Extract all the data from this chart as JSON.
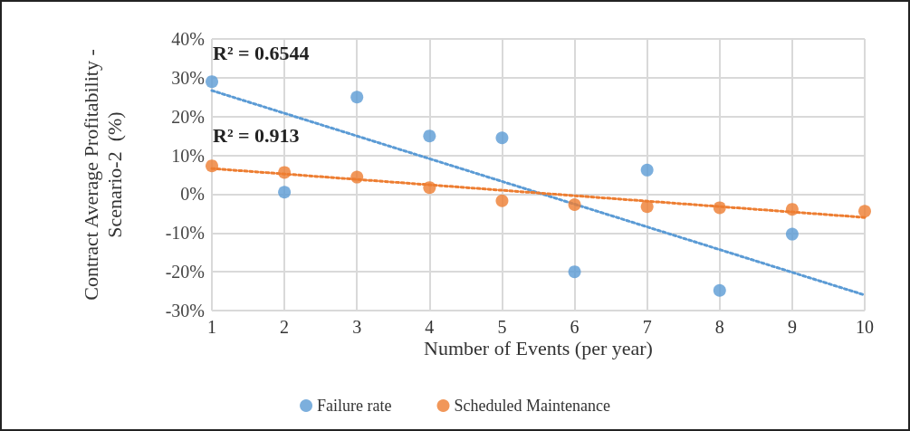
{
  "chart_data": {
    "type": "scatter",
    "xlabel": "Number of Events (per year)",
    "ylabel": "Contract Average Profitability - Scenario-2  (%)",
    "x": [
      1,
      2,
      3,
      4,
      5,
      6,
      7,
      8,
      9,
      10
    ],
    "series": [
      {
        "name": "Failure rate",
        "color": "#5b9bd5",
        "x": [
          1,
          2,
          3,
          4,
          5,
          6,
          7,
          8,
          9
        ],
        "values": [
          29,
          0.5,
          25,
          15,
          14.5,
          -20,
          6.2,
          -24.8,
          -10.3
        ]
      },
      {
        "name": "Scheduled Maintenance",
        "color": "#ed7d31",
        "values": [
          7.3,
          5.6,
          4.4,
          1.7,
          -1.7,
          -2.7,
          -3.2,
          -3.5,
          -3.9,
          -4.4
        ]
      },
      {
        "type": "line",
        "color": "#5b9bd5",
        "x": [
          1,
          10
        ],
        "values": [
          26.7,
          -26
        ],
        "line_style": "dotted",
        "marker": "none"
      },
      {
        "type": "line",
        "color": "#ed7d31",
        "x": [
          1,
          10
        ],
        "values": [
          6.6,
          -6
        ],
        "line_style": "dotted",
        "marker": "none"
      }
    ],
    "annotations": [
      "R² = 0.6544",
      "R² = 0.913"
    ],
    "xlim": [
      1,
      10
    ],
    "xticks": [
      1,
      2,
      3,
      4,
      5,
      6,
      7,
      8,
      9,
      10
    ],
    "ylim": [
      -30,
      40
    ],
    "yticks": [
      {
        "value": -30,
        "label": "-30%"
      },
      {
        "value": -20,
        "label": "-20%"
      },
      {
        "value": -10,
        "label": "-10%"
      },
      {
        "value": 0,
        "label": "0%"
      },
      {
        "value": 10,
        "label": "10%"
      },
      {
        "value": 20,
        "label": "20%"
      },
      {
        "value": 30,
        "label": "30%"
      },
      {
        "value": 40,
        "label": "40%"
      }
    ],
    "grid": true,
    "legend": "bottom",
    "marker": "circle"
  }
}
